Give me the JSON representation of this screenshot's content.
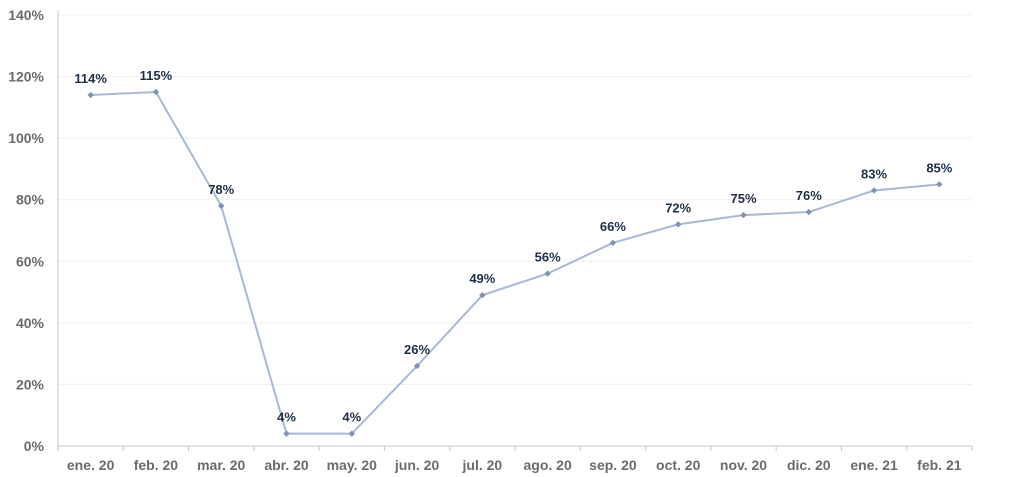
{
  "chart_data": {
    "type": "line",
    "categories": [
      "ene. 20",
      "feb. 20",
      "mar. 20",
      "abr. 20",
      "may. 20",
      "jun. 20",
      "jul. 20",
      "ago. 20",
      "sep. 20",
      "oct. 20",
      "nov. 20",
      "dic. 20",
      "ene. 21",
      "feb. 21"
    ],
    "series": [
      {
        "values": [
          114,
          115,
          78,
          4,
          4,
          26,
          49,
          56,
          66,
          72,
          75,
          76,
          83,
          85
        ],
        "labels": [
          "114%",
          "115%",
          "78%",
          "4%",
          "4%",
          "26%",
          "49%",
          "56%",
          "66%",
          "72%",
          "75%",
          "76%",
          "83%",
          "85%"
        ],
        "color": "#a9b9d2",
        "marker_color": "#8193b3"
      }
    ],
    "ylim": [
      0,
      140
    ],
    "yticks": [
      0,
      20,
      40,
      60,
      80,
      100,
      120,
      140
    ],
    "ytick_labels": [
      "0%",
      "20%",
      "40%",
      "60%",
      "80%",
      "100%",
      "120%",
      "140%"
    ],
    "grid": true,
    "legend": "none"
  }
}
